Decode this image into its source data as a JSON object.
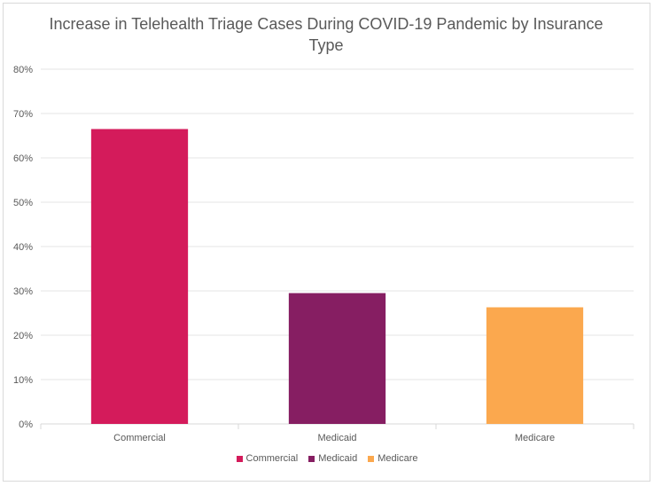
{
  "chart_data": {
    "type": "bar",
    "title": "Increase in Telehealth Triage Cases During COVID-19 Pandemic by Insurance Type",
    "categories": [
      "Commercial",
      "Medicaid",
      "Medicare"
    ],
    "values": [
      66.5,
      29.5,
      26.3
    ],
    "colors": [
      "#d41b5b",
      "#861e62",
      "#fba84e"
    ],
    "ylim": [
      0,
      80
    ],
    "yticks": [
      "0%",
      "10%",
      "20%",
      "30%",
      "40%",
      "50%",
      "60%",
      "70%",
      "80%"
    ],
    "grid": true,
    "legend_position": "bottom"
  }
}
